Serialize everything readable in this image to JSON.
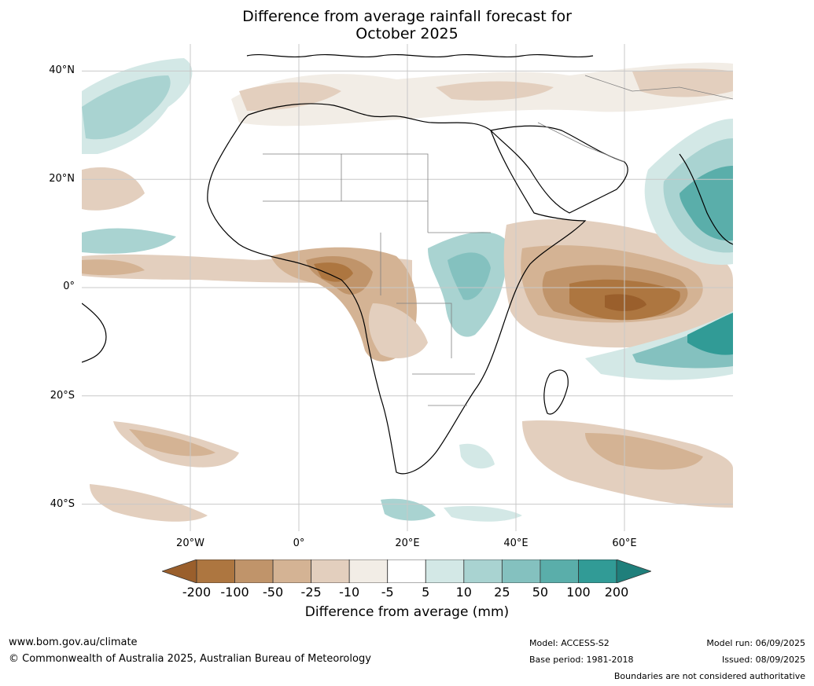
{
  "title_line1": "Difference from average rainfall forecast for",
  "title_line2": "October 2025",
  "lat_labels": [
    "40°N",
    "20°N",
    "0°",
    "20°S",
    "40°S"
  ],
  "lon_labels": [
    "20°W",
    "0°",
    "20°E",
    "40°E",
    "60°E"
  ],
  "colorbar": {
    "title": "Difference from average (mm)",
    "tick_labels": [
      "-200",
      "-100",
      "-50",
      "-25",
      "-10",
      "-5",
      "5",
      "10",
      "25",
      "50",
      "100",
      "200"
    ],
    "colors": [
      "#9a5f2c",
      "#ad7640",
      "#c0946a",
      "#d4b394",
      "#e3cfbe",
      "#f2ede6",
      "#ffffff",
      "#d3e8e6",
      "#a9d3d1",
      "#84c1bf",
      "#5aaeaa",
      "#319b96",
      "#1f7f7b"
    ]
  },
  "footer": {
    "url": "www.bom.gov.au/climate",
    "copyright": "© Commonwealth of Australia 2025, Australian Bureau of Meteorology",
    "model": "Model: ACCESS-S2",
    "base_period": "Base period: 1981-2018",
    "model_run": "Model run: 06/09/2025",
    "issued": "Issued: 08/09/2025",
    "disclaimer": "Boundaries are not considered authoritative"
  }
}
